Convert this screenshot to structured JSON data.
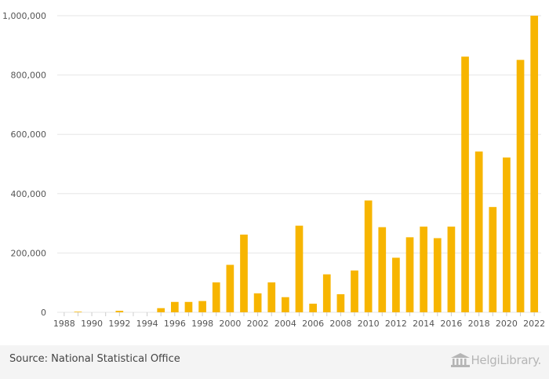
{
  "chart_data": {
    "type": "bar",
    "categories": [
      "1988",
      "1989",
      "1990",
      "1991",
      "1992",
      "1993",
      "1994",
      "1995",
      "1996",
      "1997",
      "1998",
      "1999",
      "2000",
      "2001",
      "2002",
      "2003",
      "2004",
      "2005",
      "2006",
      "2007",
      "2008",
      "2009",
      "2010",
      "2011",
      "2012",
      "2013",
      "2014",
      "2015",
      "2016",
      "2017",
      "2018",
      "2019",
      "2020",
      "2021",
      "2022"
    ],
    "values": [
      0,
      2000,
      0,
      0,
      5000,
      0,
      0,
      14000,
      35000,
      35000,
      38000,
      101000,
      160000,
      262000,
      64000,
      101000,
      51000,
      292000,
      29000,
      128000,
      61000,
      141000,
      377000,
      287000,
      184000,
      253000,
      289000,
      250000,
      289000,
      862000,
      542000,
      355000,
      522000,
      851000,
      1000000
    ],
    "x_tick_labels": [
      "1988",
      "1990",
      "1992",
      "1994",
      "1996",
      "1998",
      "2000",
      "2002",
      "2004",
      "2006",
      "2008",
      "2010",
      "2012",
      "2014",
      "2016",
      "2018",
      "2020",
      "2022"
    ],
    "y_tick_labels": [
      "0",
      "200,000",
      "400,000",
      "600,000",
      "800,000",
      "1,000,000"
    ],
    "ylim": [
      0,
      1000000
    ],
    "bar_color": "#f7b500",
    "grid": true,
    "title": "",
    "xlabel": "",
    "ylabel": ""
  },
  "footer": {
    "source": "Source: National Statistical Office",
    "logo_text": "HelgiLibrary."
  }
}
